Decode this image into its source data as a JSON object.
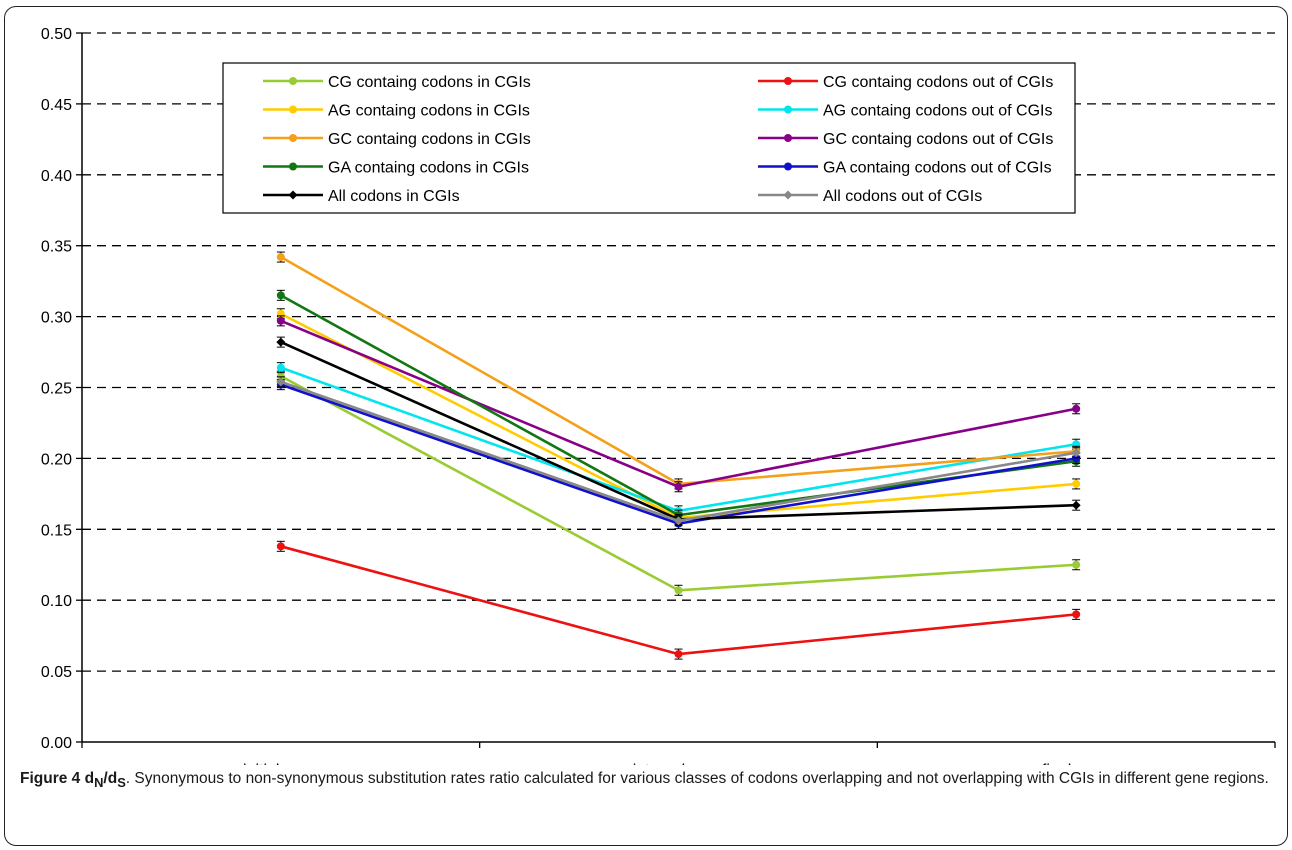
{
  "figure": {
    "label": "Figure 4",
    "title_main": "d",
    "title_sub1": "N",
    "title_slash": "/d",
    "title_sub2": "S",
    "description": "Synonymous to non-synonymous substitution rates ratio calculated for various classes of codons overlapping and not overlapping with CGIs in different gene regions."
  },
  "chart_data": {
    "type": "line",
    "categories": [
      "initial exon",
      "internal exon",
      "final exon"
    ],
    "ylim": [
      0,
      0.5
    ],
    "yticks": [
      "0.00",
      "0.05",
      "0.10",
      "0.15",
      "0.20",
      "0.25",
      "0.30",
      "0.35",
      "0.40",
      "0.45",
      "0.50"
    ],
    "grid": "dashed horizontal",
    "legend_position": "top",
    "error_bars": true,
    "series": [
      {
        "name": "CG containg codons in CGIs",
        "color": "#99cc33",
        "marker": "circle",
        "values": [
          0.258,
          0.107,
          0.125
        ]
      },
      {
        "name": "CG containg codons out of CGIs",
        "color": "#ee1111",
        "marker": "circle",
        "values": [
          0.138,
          0.062,
          0.09
        ]
      },
      {
        "name": "AG containg codons in CGIs",
        "color": "#ffcc00",
        "marker": "circle",
        "values": [
          0.302,
          0.158,
          0.182
        ]
      },
      {
        "name": "AG containg codons out of CGIs",
        "color": "#00e5ee",
        "marker": "circle",
        "values": [
          0.264,
          0.163,
          0.21
        ]
      },
      {
        "name": "GC containg codons in CGIs",
        "color": "#f5a01a",
        "marker": "circle",
        "values": [
          0.342,
          0.182,
          0.205
        ]
      },
      {
        "name": "GC containg codons out of CGIs",
        "color": "#880088",
        "marker": "circle",
        "values": [
          0.297,
          0.18,
          0.235
        ]
      },
      {
        "name": "GA containg codons in CGIs",
        "color": "#117711",
        "marker": "circle",
        "values": [
          0.315,
          0.16,
          0.198
        ]
      },
      {
        "name": "GA containg codons out of CGIs",
        "color": "#1111cc",
        "marker": "circle",
        "values": [
          0.252,
          0.154,
          0.2
        ]
      },
      {
        "name": "All codons in CGIs",
        "color": "#000000",
        "marker": "diamond",
        "values": [
          0.282,
          0.157,
          0.167
        ]
      },
      {
        "name": "All codons out of CGIs",
        "color": "#888888",
        "marker": "diamond",
        "values": [
          0.254,
          0.156,
          0.204
        ]
      }
    ]
  }
}
